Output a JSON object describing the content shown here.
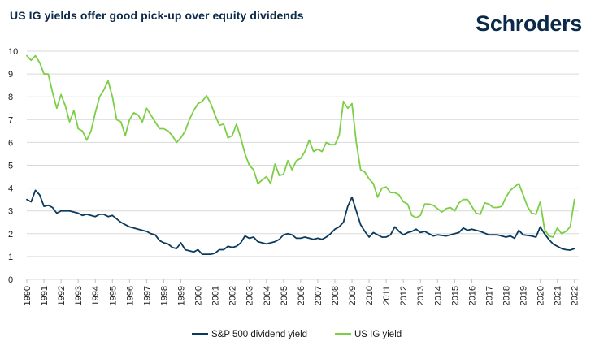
{
  "header": {
    "title": "US IG yields offer good pick-up over equity dividends",
    "logo": "Schroders"
  },
  "colors": {
    "sp500": "#0b3a5c",
    "usig": "#7ccf45",
    "grid": "#d9d9d9"
  },
  "chart_data": {
    "type": "line",
    "title": "US IG yields offer good pick-up over equity dividends",
    "xlabel": "",
    "ylabel": "",
    "xlim": [
      1990,
      2022.25
    ],
    "ylim": [
      0,
      10
    ],
    "yticks": [
      0,
      1,
      2,
      3,
      4,
      5,
      6,
      7,
      8,
      9,
      10
    ],
    "xticks": [
      1990,
      1991,
      1992,
      1993,
      1994,
      1995,
      1996,
      1997,
      1998,
      1999,
      2000,
      2001,
      2002,
      2003,
      2004,
      2005,
      2006,
      2007,
      2008,
      2009,
      2010,
      2011,
      2012,
      2013,
      2014,
      2015,
      2016,
      2017,
      2018,
      2019,
      2020,
      2021,
      2022
    ],
    "grid": true,
    "legend_position": "bottom-center",
    "series": [
      {
        "name": "S&P 500 dividend yield",
        "points": [
          [
            1990,
            3.5
          ],
          [
            1990.25,
            3.4
          ],
          [
            1990.5,
            3.9
          ],
          [
            1990.75,
            3.7
          ],
          [
            1991,
            3.2
          ],
          [
            1991.25,
            3.25
          ],
          [
            1991.5,
            3.15
          ],
          [
            1991.75,
            2.9
          ],
          [
            1992,
            3.0
          ],
          [
            1992.5,
            3.0
          ],
          [
            1993,
            2.9
          ],
          [
            1993.25,
            2.8
          ],
          [
            1993.5,
            2.85
          ],
          [
            1994,
            2.75
          ],
          [
            1994.25,
            2.85
          ],
          [
            1994.5,
            2.85
          ],
          [
            1994.75,
            2.75
          ],
          [
            1995,
            2.8
          ],
          [
            1995.5,
            2.5
          ],
          [
            1996,
            2.3
          ],
          [
            1996.5,
            2.2
          ],
          [
            1997,
            2.1
          ],
          [
            1997.25,
            2.0
          ],
          [
            1997.5,
            1.95
          ],
          [
            1997.75,
            1.7
          ],
          [
            1998,
            1.6
          ],
          [
            1998.25,
            1.55
          ],
          [
            1998.5,
            1.4
          ],
          [
            1998.75,
            1.35
          ],
          [
            1999,
            1.6
          ],
          [
            1999.25,
            1.3
          ],
          [
            1999.5,
            1.25
          ],
          [
            1999.75,
            1.2
          ],
          [
            2000,
            1.3
          ],
          [
            2000.25,
            1.1
          ],
          [
            2000.5,
            1.1
          ],
          [
            2000.75,
            1.1
          ],
          [
            2001,
            1.15
          ],
          [
            2001.25,
            1.3
          ],
          [
            2001.5,
            1.3
          ],
          [
            2001.75,
            1.45
          ],
          [
            2002,
            1.4
          ],
          [
            2002.25,
            1.45
          ],
          [
            2002.5,
            1.6
          ],
          [
            2002.75,
            1.9
          ],
          [
            2003,
            1.8
          ],
          [
            2003.25,
            1.85
          ],
          [
            2003.5,
            1.65
          ],
          [
            2003.75,
            1.6
          ],
          [
            2004,
            1.55
          ],
          [
            2004.25,
            1.6
          ],
          [
            2004.5,
            1.65
          ],
          [
            2004.75,
            1.75
          ],
          [
            2005,
            1.95
          ],
          [
            2005.25,
            2.0
          ],
          [
            2005.5,
            1.95
          ],
          [
            2005.75,
            1.8
          ],
          [
            2006,
            1.8
          ],
          [
            2006.25,
            1.85
          ],
          [
            2006.5,
            1.8
          ],
          [
            2006.75,
            1.75
          ],
          [
            2007,
            1.8
          ],
          [
            2007.25,
            1.75
          ],
          [
            2007.5,
            1.85
          ],
          [
            2007.75,
            2.0
          ],
          [
            2008,
            2.2
          ],
          [
            2008.25,
            2.3
          ],
          [
            2008.5,
            2.5
          ],
          [
            2008.75,
            3.2
          ],
          [
            2009,
            3.6
          ],
          [
            2009.25,
            3.0
          ],
          [
            2009.5,
            2.4
          ],
          [
            2009.75,
            2.1
          ],
          [
            2010,
            1.85
          ],
          [
            2010.25,
            2.05
          ],
          [
            2010.5,
            1.95
          ],
          [
            2010.75,
            1.85
          ],
          [
            2011,
            1.85
          ],
          [
            2011.25,
            1.95
          ],
          [
            2011.5,
            2.3
          ],
          [
            2011.75,
            2.1
          ],
          [
            2012,
            1.95
          ],
          [
            2012.25,
            2.05
          ],
          [
            2012.5,
            2.1
          ],
          [
            2012.75,
            2.2
          ],
          [
            2013,
            2.05
          ],
          [
            2013.25,
            2.1
          ],
          [
            2013.5,
            2.0
          ],
          [
            2013.75,
            1.9
          ],
          [
            2014,
            1.95
          ],
          [
            2014.5,
            1.9
          ],
          [
            2015,
            2.0
          ],
          [
            2015.25,
            2.05
          ],
          [
            2015.5,
            2.25
          ],
          [
            2015.75,
            2.15
          ],
          [
            2016,
            2.2
          ],
          [
            2016.5,
            2.1
          ],
          [
            2017,
            1.95
          ],
          [
            2017.5,
            1.95
          ],
          [
            2018,
            1.85
          ],
          [
            2018.25,
            1.9
          ],
          [
            2018.5,
            1.8
          ],
          [
            2018.75,
            2.15
          ],
          [
            2019,
            1.95
          ],
          [
            2019.5,
            1.9
          ],
          [
            2019.75,
            1.85
          ],
          [
            2020,
            2.3
          ],
          [
            2020.25,
            2.0
          ],
          [
            2020.5,
            1.75
          ],
          [
            2020.75,
            1.55
          ],
          [
            2021,
            1.45
          ],
          [
            2021.25,
            1.35
          ],
          [
            2021.5,
            1.3
          ],
          [
            2021.75,
            1.28
          ],
          [
            2022,
            1.35
          ]
        ]
      },
      {
        "name": "US IG yield",
        "points": [
          [
            1990,
            9.8
          ],
          [
            1990.25,
            9.6
          ],
          [
            1990.5,
            9.8
          ],
          [
            1990.75,
            9.5
          ],
          [
            1991,
            9.0
          ],
          [
            1991.25,
            9.0
          ],
          [
            1991.5,
            8.2
          ],
          [
            1991.75,
            7.5
          ],
          [
            1992,
            8.1
          ],
          [
            1992.25,
            7.6
          ],
          [
            1992.5,
            6.9
          ],
          [
            1992.75,
            7.4
          ],
          [
            1993,
            6.6
          ],
          [
            1993.25,
            6.5
          ],
          [
            1993.5,
            6.1
          ],
          [
            1993.75,
            6.5
          ],
          [
            1994,
            7.3
          ],
          [
            1994.25,
            8.0
          ],
          [
            1994.5,
            8.3
          ],
          [
            1994.75,
            8.7
          ],
          [
            1995,
            8.0
          ],
          [
            1995.25,
            7.0
          ],
          [
            1995.5,
            6.9
          ],
          [
            1995.75,
            6.3
          ],
          [
            1996,
            7.0
          ],
          [
            1996.25,
            7.3
          ],
          [
            1996.5,
            7.2
          ],
          [
            1996.75,
            6.9
          ],
          [
            1997,
            7.5
          ],
          [
            1997.25,
            7.2
          ],
          [
            1997.5,
            6.9
          ],
          [
            1997.75,
            6.6
          ],
          [
            1998,
            6.6
          ],
          [
            1998.25,
            6.5
          ],
          [
            1998.5,
            6.3
          ],
          [
            1998.75,
            6.0
          ],
          [
            1999,
            6.2
          ],
          [
            1999.25,
            6.5
          ],
          [
            1999.5,
            7.0
          ],
          [
            1999.75,
            7.4
          ],
          [
            2000,
            7.7
          ],
          [
            2000.25,
            7.8
          ],
          [
            2000.5,
            8.05
          ],
          [
            2000.75,
            7.7
          ],
          [
            2001,
            7.2
          ],
          [
            2001.25,
            6.75
          ],
          [
            2001.5,
            6.8
          ],
          [
            2001.75,
            6.2
          ],
          [
            2002,
            6.3
          ],
          [
            2002.25,
            6.8
          ],
          [
            2002.5,
            6.2
          ],
          [
            2002.75,
            5.5
          ],
          [
            2003,
            5.0
          ],
          [
            2003.25,
            4.8
          ],
          [
            2003.5,
            4.2
          ],
          [
            2003.75,
            4.35
          ],
          [
            2004,
            4.5
          ],
          [
            2004.25,
            4.2
          ],
          [
            2004.5,
            5.05
          ],
          [
            2004.75,
            4.55
          ],
          [
            2005,
            4.6
          ],
          [
            2005.25,
            5.2
          ],
          [
            2005.5,
            4.8
          ],
          [
            2005.75,
            5.2
          ],
          [
            2006,
            5.3
          ],
          [
            2006.25,
            5.6
          ],
          [
            2006.5,
            6.1
          ],
          [
            2006.75,
            5.6
          ],
          [
            2007,
            5.7
          ],
          [
            2007.25,
            5.6
          ],
          [
            2007.5,
            6.0
          ],
          [
            2007.75,
            5.9
          ],
          [
            2008,
            5.9
          ],
          [
            2008.25,
            6.3
          ],
          [
            2008.5,
            7.8
          ],
          [
            2008.75,
            7.5
          ],
          [
            2009,
            7.7
          ],
          [
            2009.25,
            6.0
          ],
          [
            2009.5,
            4.8
          ],
          [
            2009.75,
            4.7
          ],
          [
            2010,
            4.4
          ],
          [
            2010.25,
            4.2
          ],
          [
            2010.5,
            3.6
          ],
          [
            2010.75,
            4.0
          ],
          [
            2011,
            4.05
          ],
          [
            2011.25,
            3.8
          ],
          [
            2011.5,
            3.8
          ],
          [
            2011.75,
            3.7
          ],
          [
            2012,
            3.4
          ],
          [
            2012.25,
            3.3
          ],
          [
            2012.5,
            2.8
          ],
          [
            2012.75,
            2.7
          ],
          [
            2013,
            2.8
          ],
          [
            2013.25,
            3.3
          ],
          [
            2013.5,
            3.3
          ],
          [
            2013.75,
            3.25
          ],
          [
            2014,
            3.1
          ],
          [
            2014.25,
            2.95
          ],
          [
            2014.5,
            3.1
          ],
          [
            2014.75,
            3.15
          ],
          [
            2015,
            3.0
          ],
          [
            2015.25,
            3.35
          ],
          [
            2015.5,
            3.5
          ],
          [
            2015.75,
            3.5
          ],
          [
            2016,
            3.2
          ],
          [
            2016.25,
            2.9
          ],
          [
            2016.5,
            2.85
          ],
          [
            2016.75,
            3.35
          ],
          [
            2017,
            3.3
          ],
          [
            2017.25,
            3.15
          ],
          [
            2017.5,
            3.15
          ],
          [
            2017.75,
            3.2
          ],
          [
            2018,
            3.6
          ],
          [
            2018.25,
            3.9
          ],
          [
            2018.5,
            4.05
          ],
          [
            2018.75,
            4.2
          ],
          [
            2019,
            3.7
          ],
          [
            2019.25,
            3.2
          ],
          [
            2019.5,
            2.9
          ],
          [
            2019.75,
            2.85
          ],
          [
            2020,
            3.4
          ],
          [
            2020.25,
            2.2
          ],
          [
            2020.5,
            1.9
          ],
          [
            2020.75,
            1.85
          ],
          [
            2021,
            2.25
          ],
          [
            2021.25,
            2.0
          ],
          [
            2021.5,
            2.1
          ],
          [
            2021.75,
            2.3
          ],
          [
            2022,
            3.5
          ]
        ]
      }
    ]
  }
}
